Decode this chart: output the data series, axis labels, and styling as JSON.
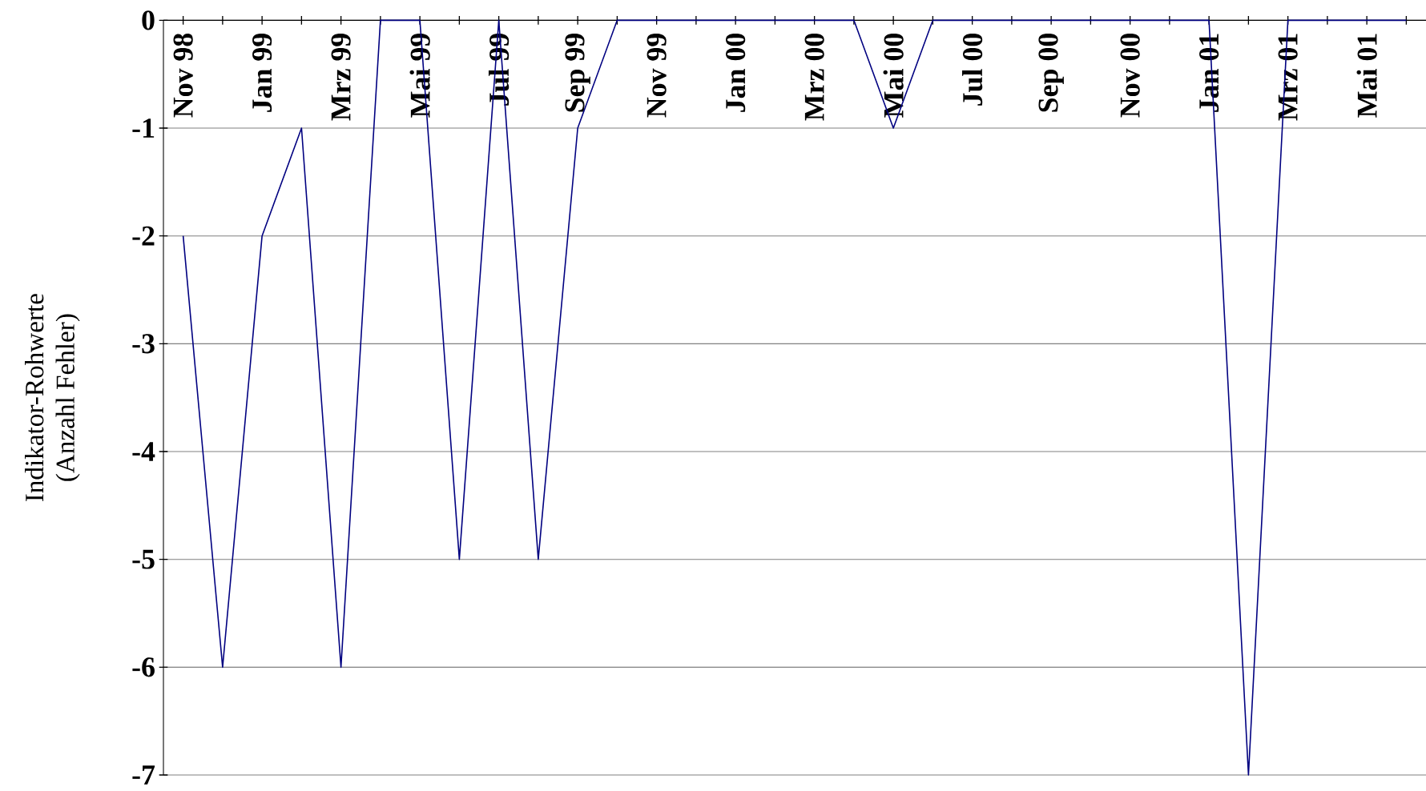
{
  "chart_data": {
    "type": "line",
    "ylabel": "Indikator-Rohwerte\n(Anzahl Fehler)",
    "categories": [
      "Nov 98",
      null,
      "Jan 99",
      null,
      "Mrz 99",
      null,
      "Mai 99",
      null,
      "Jul 99",
      null,
      "Sep 99",
      null,
      "Nov 99",
      null,
      "Jan 00",
      null,
      "Mrz 00",
      null,
      "Mai 00",
      null,
      "Jul 00",
      null,
      "Sep 00",
      null,
      "Nov 00",
      null,
      "Jan 01",
      null,
      "Mrz 01",
      null,
      "Mai 01",
      null
    ],
    "series": [
      {
        "color": "#000080",
        "values": [
          -2,
          -6,
          -2,
          -1,
          -6,
          0,
          0,
          -5,
          0,
          -5,
          -1,
          0,
          0,
          0,
          0,
          0,
          0,
          0,
          -1,
          0,
          0,
          0,
          0,
          0,
          0,
          0,
          0,
          -7,
          0,
          0,
          0,
          0
        ]
      }
    ],
    "ylim": [
      -7,
      0
    ],
    "yticks": [
      -7,
      -6,
      -5,
      -4,
      -3,
      -2,
      -1,
      0
    ],
    "grid": "y",
    "marker": "none",
    "line_style": "solid"
  }
}
